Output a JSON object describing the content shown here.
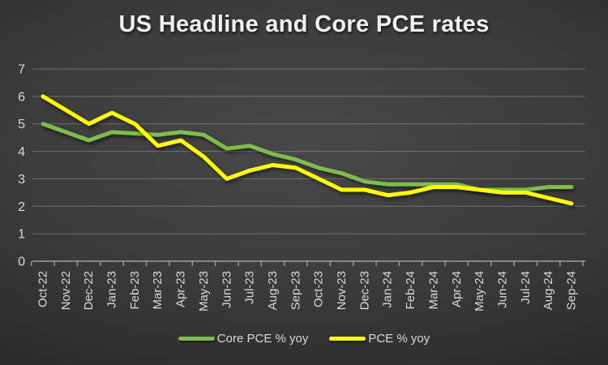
{
  "chart_data": {
    "type": "line",
    "title": "US Headline and Core PCE rates",
    "categories": [
      "Oct-22",
      "Nov-22",
      "Dec-22",
      "Jan-23",
      "Feb-23",
      "Mar-23",
      "Apr-23",
      "May-23",
      "Jun-23",
      "Jul-23",
      "Aug-23",
      "Sep-23",
      "Oct-23",
      "Nov-23",
      "Dec-23",
      "Jan-24",
      "Feb-24",
      "Mar-24",
      "Apr-24",
      "May-24",
      "Jun-24",
      "Jul-24",
      "Aug-24",
      "Sep-24"
    ],
    "series": [
      {
        "name": "Core PCE % yoy",
        "color": "#7FBC4C",
        "values": [
          5.0,
          4.7,
          4.4,
          4.7,
          4.65,
          4.6,
          4.7,
          4.6,
          4.1,
          4.2,
          3.9,
          3.7,
          3.4,
          3.2,
          2.9,
          2.8,
          2.8,
          2.8,
          2.8,
          2.6,
          2.6,
          2.6,
          2.7,
          2.7
        ]
      },
      {
        "name": "PCE % yoy",
        "color": "#FFFF00",
        "values": [
          6.0,
          5.5,
          5.0,
          5.4,
          5.0,
          4.2,
          4.4,
          3.8,
          3.0,
          3.3,
          3.5,
          3.4,
          3.0,
          2.6,
          2.6,
          2.4,
          2.5,
          2.7,
          2.7,
          2.6,
          2.5,
          2.5,
          2.3,
          2.1
        ]
      }
    ],
    "xlabel": "",
    "ylabel": "",
    "ylim": [
      0,
      7
    ],
    "yticks": [
      0,
      1,
      2,
      3,
      4,
      5,
      6,
      7
    ],
    "grid": true,
    "legend_position": "bottom",
    "x_tick_label_rotation": -90
  },
  "style_colors": {
    "axis_text": "#D9D9D9",
    "gridline": "rgba(217,217,217,0.32)",
    "axis_line": "#9E9E9E",
    "title_text": "#F1F1F1"
  }
}
